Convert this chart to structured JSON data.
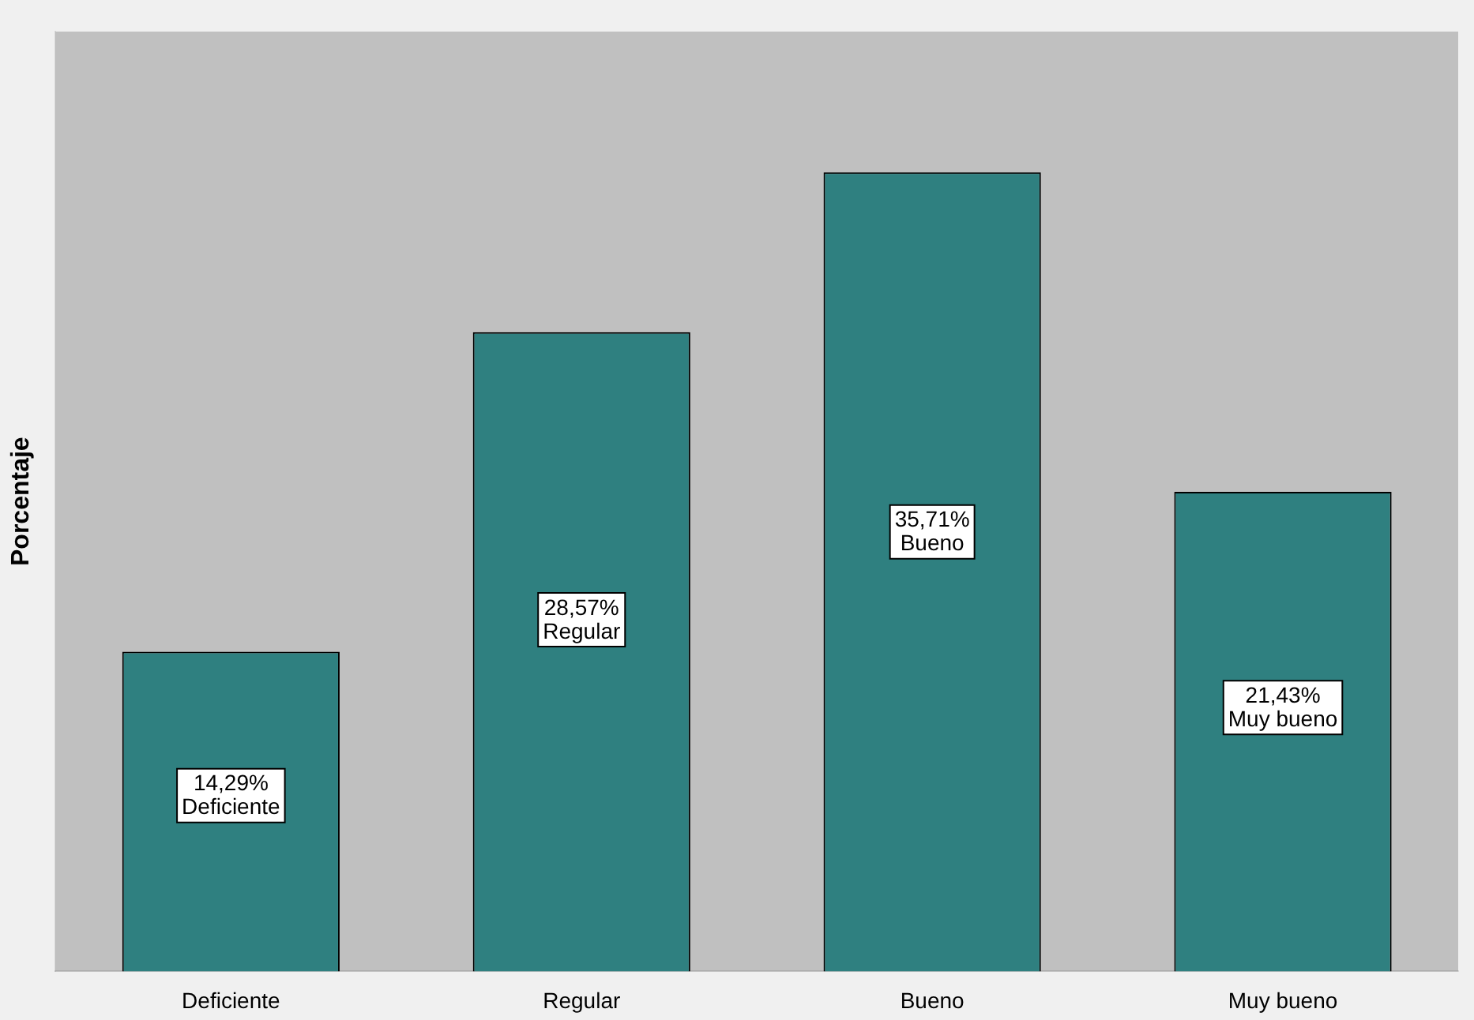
{
  "chart_data": {
    "type": "bar",
    "ylabel": "Porcentaje",
    "categories": [
      "Deficiente",
      "Regular",
      "Bueno",
      "Muy bueno"
    ],
    "values": [
      14.29,
      28.57,
      35.71,
      21.43
    ],
    "value_labels": [
      "14,29%",
      "28,57%",
      "35,71%",
      "21,43%"
    ],
    "color": "#2f8080",
    "ylim": [
      0,
      42
    ],
    "grid": false,
    "legend": false,
    "tick_labels": "x"
  }
}
